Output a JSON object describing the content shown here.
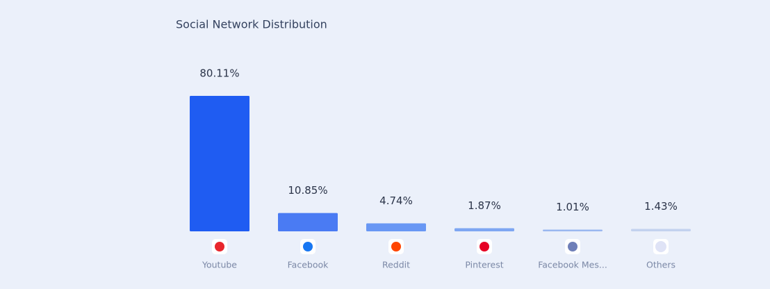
{
  "chart_data": {
    "type": "bar",
    "title": "Social Network Distribution",
    "categories": [
      "Youtube",
      "Facebook",
      "Reddit",
      "Pinterest",
      "Facebook Mes...",
      "Others"
    ],
    "values": [
      80.11,
      10.85,
      4.74,
      1.87,
      1.01,
      1.43
    ],
    "value_labels": [
      "80.11%",
      "10.85%",
      "4.74%",
      "1.87%",
      "1.01%",
      "1.43%"
    ],
    "colors": [
      "#1f5cf2",
      "#4a7bf3",
      "#6897f4",
      "#7ea6f2",
      "#9ab7f0",
      "#c3d2ef"
    ]
  }
}
